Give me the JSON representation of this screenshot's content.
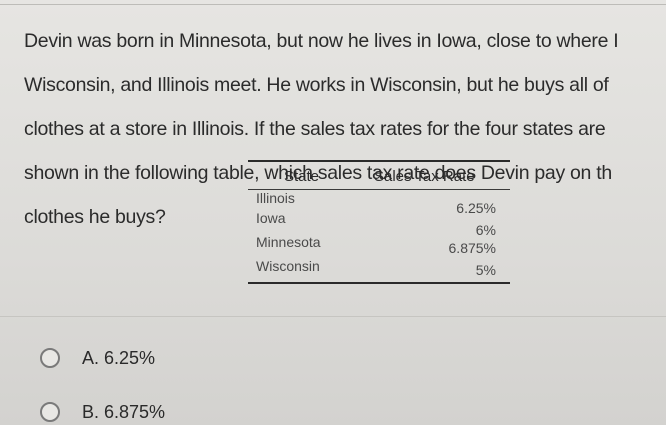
{
  "question": {
    "lines": [
      "Devin was born in Minnesota, but now he lives in Iowa, close to where I",
      "Wisconsin, and Illinois meet. He works in Wisconsin, but he buys all of",
      "clothes at a store in Illinois. If the sales tax rates for the four states are",
      "shown in the following table, which sales tax rate does Devin pay on th",
      "clothes he buys?"
    ]
  },
  "table": {
    "headers": {
      "state": "State",
      "rate": "Sales Tax Rate"
    },
    "rows": [
      {
        "state": "Illinois",
        "rate": "6.25%"
      },
      {
        "state": "Iowa",
        "rate": "6%"
      },
      {
        "state": "Minnesota",
        "rate": "6.875%"
      },
      {
        "state": "Wisconsin",
        "rate": "5%"
      }
    ]
  },
  "choices": [
    {
      "label": "A. 6.25%"
    },
    {
      "label": "B. 6.875%"
    }
  ]
}
